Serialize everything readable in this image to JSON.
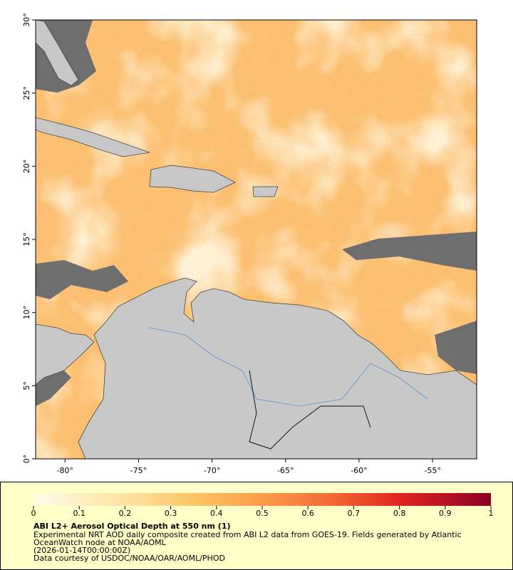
{
  "chart_data": {
    "type": "map",
    "xlim": [
      -82,
      -52
    ],
    "ylim": [
      0,
      30
    ],
    "xticks": [
      {
        "value": -80,
        "label": "-80°"
      },
      {
        "value": -75,
        "label": "-75°"
      },
      {
        "value": -70,
        "label": "-70°"
      },
      {
        "value": -65,
        "label": "-65°"
      },
      {
        "value": -60,
        "label": "-60°"
      },
      {
        "value": -55,
        "label": "-55°"
      }
    ],
    "yticks": [
      {
        "value": 0,
        "label": "0°"
      },
      {
        "value": 5,
        "label": "5°"
      },
      {
        "value": 10,
        "label": "10°"
      },
      {
        "value": 15,
        "label": "15°"
      },
      {
        "value": 20,
        "label": "20°"
      },
      {
        "value": 25,
        "label": "25°"
      },
      {
        "value": 30,
        "label": "30°"
      }
    ],
    "colorbar": {
      "lim": [
        0,
        1
      ],
      "ticks": [
        0,
        0.1,
        0.2,
        0.3,
        0.4,
        0.5,
        0.6,
        0.7,
        0.8,
        0.9,
        1
      ]
    },
    "title": "ABI L2+ Aerosol Optical Depth at 550 nm (1)",
    "description": [
      "Experimental NRT AOD daily composite created from ABI L2 data from GOES-19. Fields generated by Atlantic",
      "OceanWatch node at NOAA/AOML",
      "(2026-01-14T00:00:00Z)",
      "Data courtesy of USDOC/NOAA/OAR/AOML/PHOD"
    ]
  }
}
